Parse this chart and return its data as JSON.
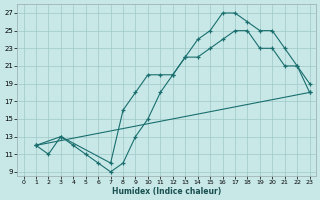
{
  "xlabel": "Humidex (Indice chaleur)",
  "bg_color": "#c8e8e8",
  "grid_color": "#a0c8c8",
  "line_color": "#1a6e6e",
  "xlim": [
    -0.5,
    23.5
  ],
  "ylim": [
    8.5,
    28
  ],
  "xticks": [
    0,
    1,
    2,
    3,
    4,
    5,
    6,
    7,
    8,
    9,
    10,
    11,
    12,
    13,
    14,
    15,
    16,
    17,
    18,
    19,
    20,
    21,
    22,
    23
  ],
  "yticks": [
    9,
    11,
    13,
    15,
    17,
    19,
    21,
    23,
    25,
    27
  ],
  "line1_x": [
    1,
    2,
    3,
    4,
    5,
    6,
    7,
    8,
    9,
    10,
    11,
    12,
    13,
    14,
    15,
    16,
    17,
    18,
    19,
    20,
    21,
    22,
    23
  ],
  "line1_y": [
    12,
    11,
    13,
    12,
    11,
    10,
    9,
    10,
    13,
    15,
    18,
    20,
    22,
    24,
    25,
    27,
    27,
    26,
    25,
    25,
    23,
    21,
    18
  ],
  "line2_x": [
    1,
    3,
    7,
    8,
    9,
    10,
    11,
    12,
    13,
    14,
    15,
    16,
    17,
    18,
    19,
    20,
    21,
    22,
    23
  ],
  "line2_y": [
    12,
    13,
    10,
    16,
    18,
    20,
    20,
    20,
    22,
    22,
    23,
    24,
    25,
    25,
    23,
    23,
    21,
    21,
    19
  ],
  "line3_x": [
    1,
    23
  ],
  "line3_y": [
    12,
    18
  ]
}
